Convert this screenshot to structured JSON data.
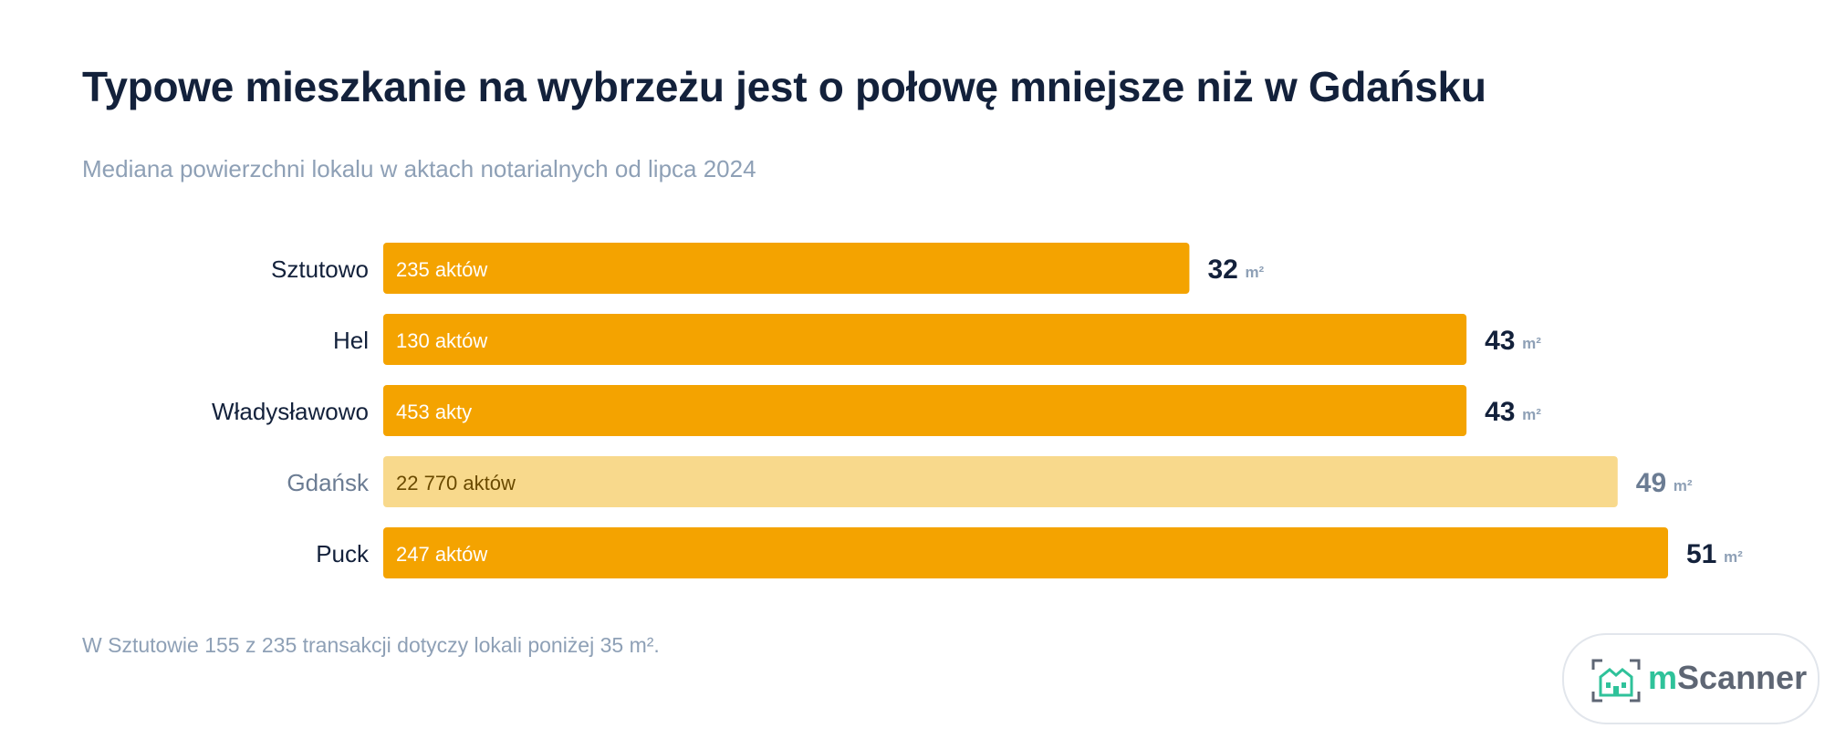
{
  "title": "Typowe mieszkanie na wybrzeżu jest o połowę mniejsze niż w Gdańsku",
  "subtitle": "Mediana powierzchni lokalu w aktach notarialnych od lipca 2024",
  "footnote": "W Sztutowie 155 z 235 transakcji dotyczy lokali poniżej 35 m².",
  "logo": {
    "prefix": "m",
    "name": "Scanner"
  },
  "colors": {
    "bar": "#f4a300",
    "bar_highlight": "#f8d98c",
    "text_dark": "#13213b",
    "text_muted": "#6b7c93",
    "unit": "#8ea0b6",
    "logo_green": "#2fc29a"
  },
  "chart_data": {
    "type": "bar",
    "orientation": "horizontal",
    "categories": [
      "Sztutowo",
      "Hel",
      "Władysławowo",
      "Gdańsk",
      "Puck"
    ],
    "values": [
      32,
      43,
      43,
      49,
      51
    ],
    "value_unit": "m²",
    "bar_labels": [
      "235 aktów",
      "130 aktów",
      "453 akty",
      "22 770 aktów",
      "247 aktów"
    ],
    "highlighted": "Gdańsk",
    "xlim": [
      0,
      51
    ],
    "grid": false,
    "legend": "none"
  }
}
